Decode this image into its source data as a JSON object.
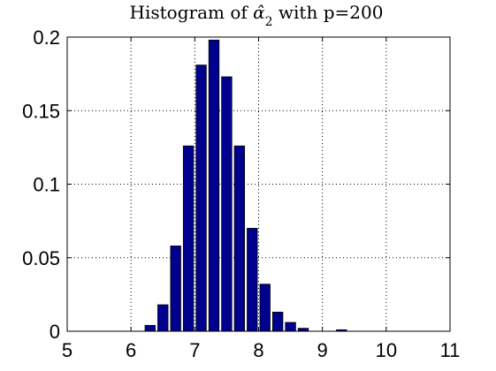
{
  "chart_data": {
    "type": "bar",
    "title_main": "Histogram of ",
    "title_symbol": "α̂",
    "title_subscript": "2",
    "title_tail": " with p=200",
    "xlabel": "",
    "ylabel": "",
    "xlim": [
      5,
      11
    ],
    "ylim": [
      0,
      0.2
    ],
    "xticks": [
      5,
      6,
      7,
      8,
      9,
      10,
      11
    ],
    "yticks": [
      0,
      0.05,
      0.1,
      0.15,
      0.2
    ],
    "ytick_labels": [
      "0",
      "0.05",
      "0.1",
      "0.15",
      "0.2"
    ],
    "grid": true,
    "bar_width": 0.2,
    "bar_color": "#00008F",
    "x": [
      6.3,
      6.5,
      6.7,
      6.9,
      7.1,
      7.3,
      7.5,
      7.7,
      7.9,
      8.1,
      8.3,
      8.5,
      8.7,
      8.9,
      9.1,
      9.3,
      9.5,
      9.7,
      9.9,
      10.1,
      10.3
    ],
    "values": [
      0.004,
      0.018,
      0.058,
      0.126,
      0.181,
      0.198,
      0.173,
      0.126,
      0.07,
      0.032,
      0.013,
      0.006,
      0.002,
      0.0,
      0.0,
      0.001,
      0.0,
      0.0,
      0.0,
      0.0,
      0.0
    ]
  }
}
